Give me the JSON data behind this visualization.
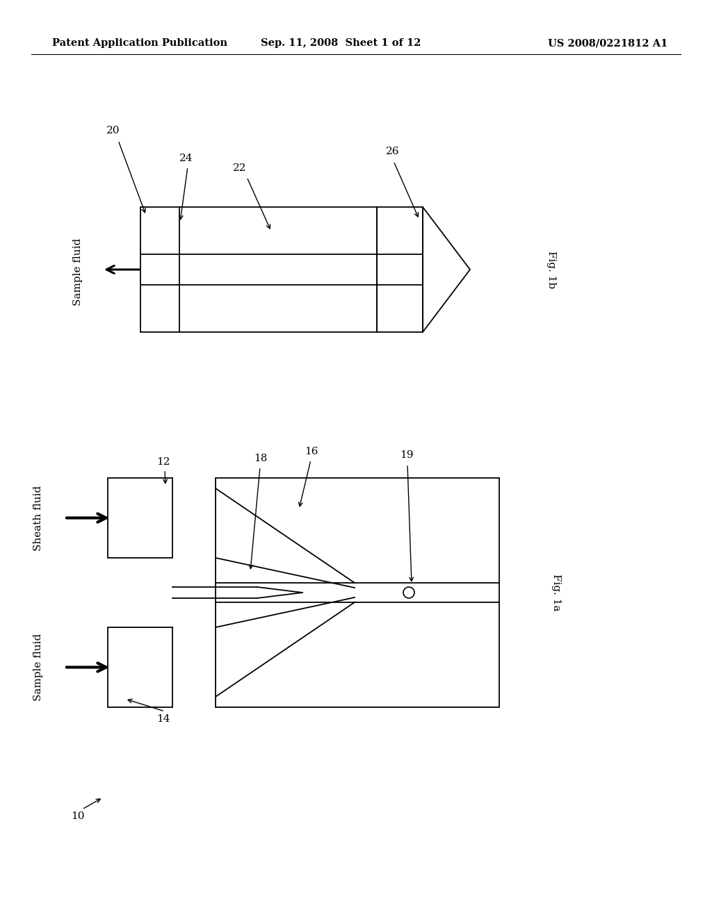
{
  "bg_color": "#ffffff",
  "header_left": "Patent Application Publication",
  "header_center": "Sep. 11, 2008  Sheet 1 of 12",
  "header_right": "US 2008/0221812 A1",
  "fig1b": {
    "label": "Fig. 1b",
    "ref_20": "20",
    "ref_22": "22",
    "ref_24": "24",
    "ref_26": "26",
    "fluid_label": "Sample fluid"
  },
  "fig1a": {
    "label": "Fig. 1a",
    "ref_10": "10",
    "ref_12": "12",
    "ref_14": "14",
    "ref_16": "16",
    "ref_18": "18",
    "ref_19": "19",
    "sheath_label": "Sheath fluid",
    "sample_label": "Sample fluid"
  }
}
